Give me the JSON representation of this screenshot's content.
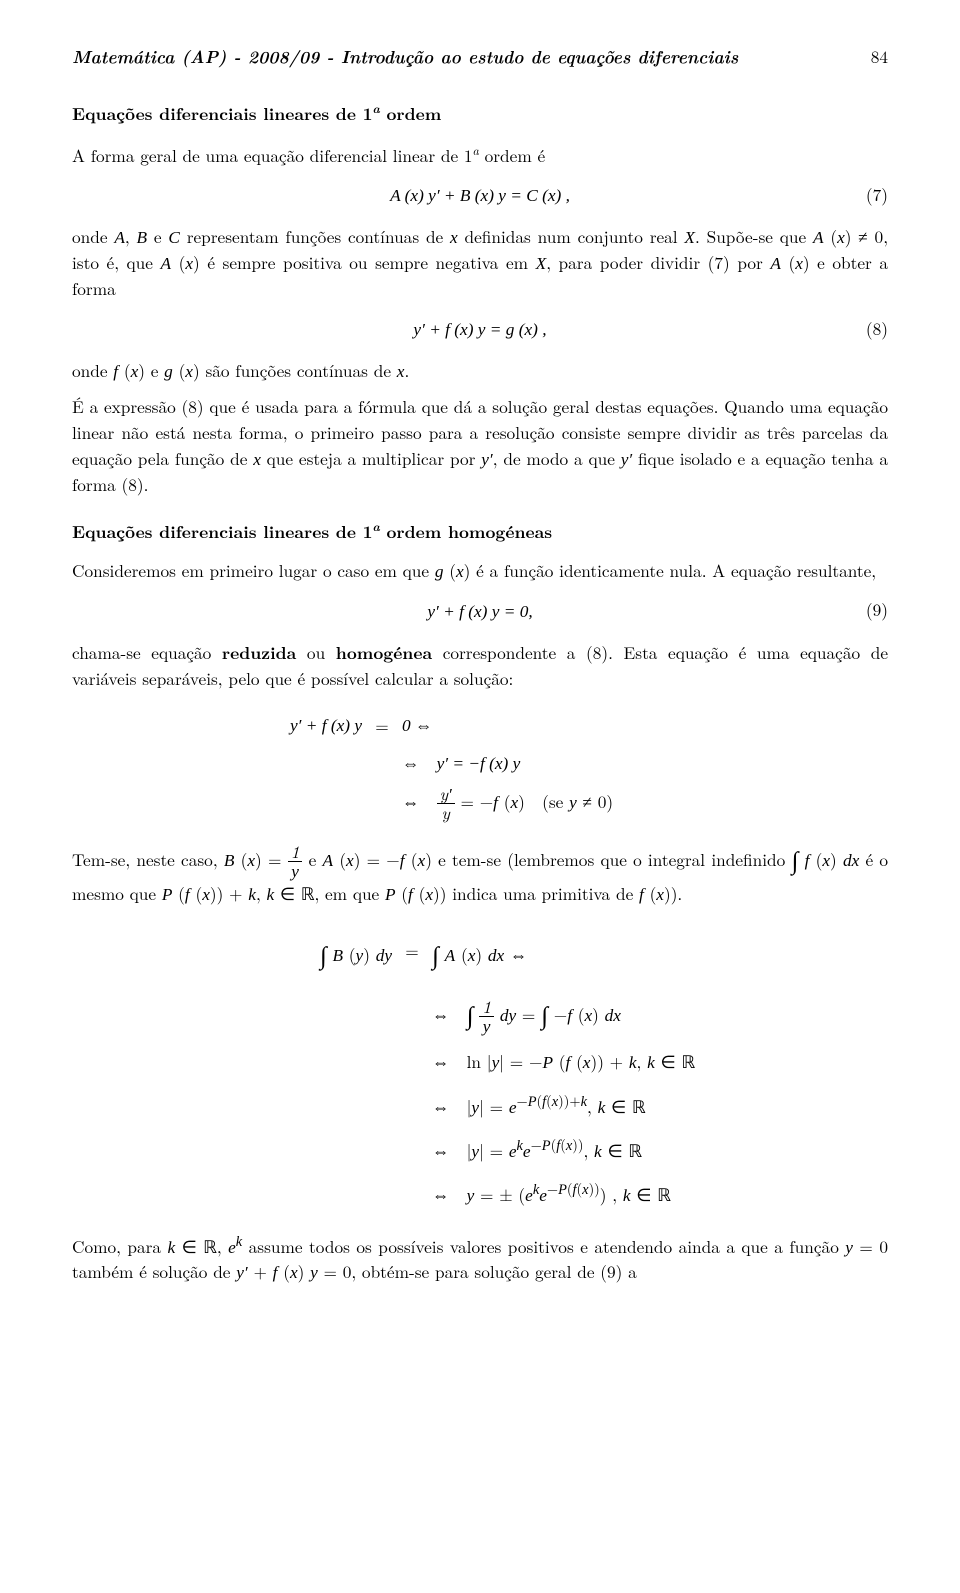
{
  "header": {
    "title": "Matemática (AP) - 2008/09 - Introdução ao estudo de equações diferenciais",
    "page_number": "84"
  },
  "section1": {
    "title_html": "Equações diferenciais lineares de 1<sup style='font-size:0.72em;font-style:italic'>a</sup> ordem",
    "intro_html": "A forma geral de uma equação diferencial linear de 1<span class='sup'>a</span> ordem é",
    "eq7": {
      "expr": "A (x) y′ + B (x) y = C (x) ,",
      "num": "(7)"
    },
    "para2_html": "onde <span class='math'>A</span>, <span class='math'>B</span> e <span class='math'>C</span> representam funções contínuas de <span class='math'>x</span> definidas num conjunto real <span class='math'>X</span>. Supõe-se que <span class='math'>A</span> (<span class='math'>x</span>) ≠ 0, isto é, que <span class='math'>A</span> (<span class='math'>x</span>) é sempre positiva ou sempre negativa em <span class='math'>X</span>, para poder dividir (7) por <span class='math'>A</span> (<span class='math'>x</span>) e obter a forma",
    "eq8": {
      "expr": "y′ + f (x) y = g (x) ,",
      "num": "(8)"
    },
    "para3_html": "onde <span class='math'>f</span> (<span class='math'>x</span>) e <span class='math'>g</span> (<span class='math'>x</span>) são funções contínuas de <span class='math'>x</span>.",
    "para4_html": "É a expressão (8) que é usada para a fórmula que dá a solução geral destas equações. Quando uma equação linear não está nesta forma, o primeiro passo para a resolução consiste sempre dividir as três parcelas da equação pela função de <span class='math'>x</span> que esteja a multiplicar por <span class='math'>y′</span>, de modo a que <span class='math'>y′</span> fique isolado e a equação tenha a forma (8)."
  },
  "section2": {
    "title_html": "Equações diferenciais lineares de 1<sup style='font-size:0.72em;font-style:italic'>a</sup> ordem homogéneas",
    "para1_html": "Consideremos em primeiro lugar o caso em que <span class='math'>g</span> (<span class='math'>x</span>) é a função identicamente nula. A equação resultante,",
    "eq9": {
      "expr": "y′ + f (x) y = 0,",
      "num": "(9)"
    },
    "para2_html": "chama-se equação <b>reduzida</b> ou <b>homogénea</b> correspondente a (8). Esta equação é uma equação de variáveis separáveis, pelo que é possível calcular a solução:",
    "deriv1": {
      "line1_left": "y′ + f (x) y",
      "line1_mid": "=",
      "line1_right": "0 ⇔",
      "line2": "⇔ y′ = −f (x) y",
      "line3_html": "⇔ <span class='frac'><span class='num'>y′</span><span class='den'>y</span></span> = −<span class='math'>f</span> (<span class='math'>x</span>) (se <span class='math'>y</span> ≠ 0)"
    },
    "para3_html": "Tem-se, neste caso, <span class='math'>B</span> (<span class='math'>x</span>) = <span class='frac'><span class='num'>1</span><span class='den'><span class='math'>y</span></span></span> e <span class='math'>A</span> (<span class='math'>x</span>) = −<span class='math'>f</span> (<span class='math'>x</span>) e tem-se (lembremos que o integral indefinido <span class='int'>∫</span> <span class='math'>f</span> (<span class='math'>x</span>) <span class='math'>dx</span> é o mesmo que <span class='math'>P</span> (<span class='math'>f</span> (<span class='math'>x</span>)) + <span class='math'>k</span>, <span class='math'>k</span> ∈ <span class='bb'>ℝ</span>, em que <span class='math'>P</span> (<span class='math'>f</span> (<span class='math'>x</span>)) indica uma primitiva de <span class='math'>f</span> (<span class='math'>x</span>)).",
    "deriv2": {
      "line1_left_html": "<span class='int'>∫</span> <span class='math'>B</span> (<span class='math'>y</span>) <span class='math'>dy</span>",
      "line1_mid": "=",
      "line1_right_html": "<span class='int'>∫</span> <span class='math'>A</span> (<span class='math'>x</span>) <span class='math'>dx</span> ⇔",
      "line2_html": "⇔ <span class='int'>∫</span> <span class='frac'><span class='num'>1</span><span class='den'><span class='math'>y</span></span></span> <span class='math'>dy</span> = <span class='int'>∫</span> −<span class='math'>f</span> (<span class='math'>x</span>) <span class='math'>dx</span>",
      "line3_html": "⇔ <span class='rm'>ln</span> |<span class='math'>y</span>| = −<span class='math'>P</span> (<span class='math'>f</span> (<span class='math'>x</span>)) + <span class='math'>k</span>, <span class='math'>k</span> ∈ <span class='bb'>ℝ</span>",
      "line4_html": "⇔ |<span class='math'>y</span>| = <span class='math'>e</span><sup>−<span class='math'>P</span>(<span class='math'>f</span>(<span class='math'>x</span>))+<span class='math'>k</span></sup>, <span class='math'>k</span> ∈ <span class='bb'>ℝ</span>",
      "line5_html": "⇔ |<span class='math'>y</span>| = <span class='math'>e</span><sup><span class='math'>k</span></sup><span class='math'>e</span><sup>−<span class='math'>P</span>(<span class='math'>f</span>(<span class='math'>x</span>))</sup>, <span class='math'>k</span> ∈ <span class='bb'>ℝ</span>",
      "line6_html": "⇔ <span class='math'>y</span> = ± (<span class='math'>e</span><sup><span class='math'>k</span></sup><span class='math'>e</span><sup>−<span class='math'>P</span>(<span class='math'>f</span>(<span class='math'>x</span>))</sup>) , <span class='math'>k</span> ∈ <span class='bb'>ℝ</span>"
    },
    "para4_html": "Como, para <span class='math'>k</span> ∈ <span class='bb'>ℝ</span>, <span class='math'>e</span><sup><span class='math'>k</span></sup> assume todos os possíveis valores positivos e atendendo ainda a que a função <span class='math'>y</span> = 0 também é solução de <span class='math'>y′</span> + <span class='math'>f</span> (<span class='math'>x</span>) <span class='math'>y</span> = 0, obtém-se para solução geral de (9) a"
  }
}
